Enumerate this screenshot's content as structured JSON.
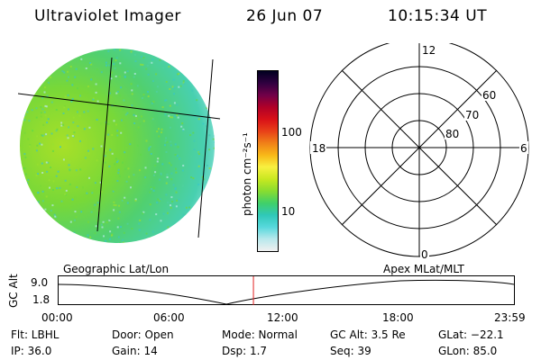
{
  "header": {
    "instrument": "Ultraviolet Imager",
    "date": "26 Jun 07",
    "time": "10:15:34 UT"
  },
  "colorbar": {
    "unit_label": "photon cm⁻²s⁻¹",
    "ticks": [
      "100",
      "10"
    ],
    "stops": [
      "#f0f0f0",
      "#b8e8ec",
      "#58d8dc",
      "#30c8b8",
      "#40d068",
      "#88dc30",
      "#c8e820",
      "#f8f040",
      "#f8b818",
      "#f08018",
      "#e84018",
      "#d81018",
      "#b00028",
      "#700048",
      "#300040",
      "#000020"
    ]
  },
  "polar_plot": {
    "mlt_labels": [
      "12",
      "18",
      "6",
      "0"
    ],
    "lat_labels": [
      "60",
      "70",
      "80"
    ]
  },
  "timeline": {
    "left_title": "Geographic Lat/Lon",
    "right_title": "Apex  MLat/MLT",
    "axis_label": "GC Alt",
    "y_ticks": [
      "9.0",
      "1.8"
    ],
    "x_ticks": [
      "00:00",
      "06:00",
      "12:00",
      "18:00",
      "23:59"
    ],
    "current_time_fraction": 0.427
  },
  "info": {
    "flt": "Flt: LBHL",
    "ip": "IP: 36.0",
    "door": "Door: Open",
    "gain": "Gain: 14",
    "mode": "Mode: Normal",
    "dsp": "Dsp:     1.7",
    "gcalt": "GC Alt: 3.5 Re",
    "seq": "Seq: 39",
    "glat": "GLat: −22.1",
    "glon": "GLon:  85.0"
  }
}
